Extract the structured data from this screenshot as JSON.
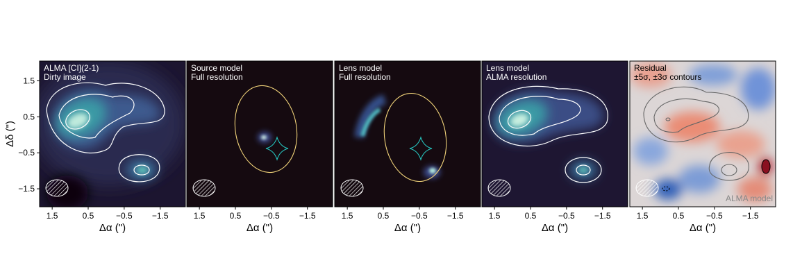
{
  "chart_data": [
    {
      "type": "image",
      "title": "ALMA [CI](2-1)",
      "subtitle": "Dirty image",
      "x_label": "Δα (\")",
      "y_label": "Δδ (\")",
      "xlim": [
        1.85,
        -2.2
      ],
      "ylim": [
        -2.0,
        2.05
      ],
      "xticks": [
        1.5,
        0.5,
        {
          "value": -0.5,
          "label": "−0.5"
        },
        {
          "value": -1.5,
          "label": "−1.5"
        }
      ],
      "yticks": [
        1.5,
        0.5,
        {
          "value": -0.5,
          "label": "−0.5"
        },
        {
          "value": -1.5,
          "label": "−1.5"
        }
      ]
    },
    {
      "type": "image",
      "title": "Source model",
      "subtitle": "Full resolution",
      "x_label": "Δα (\")",
      "xlim": [
        1.85,
        -2.2
      ],
      "ylim": [
        -2.0,
        2.05
      ],
      "xticks": [
        1.5,
        0.5,
        {
          "value": -0.5,
          "label": "−0.5"
        },
        {
          "value": -1.5,
          "label": "−1.5"
        }
      ]
    },
    {
      "type": "image",
      "title": "Lens model",
      "subtitle": "Full resolution",
      "x_label": "Δα (\")",
      "xlim": [
        1.85,
        -2.2
      ],
      "ylim": [
        -2.0,
        2.05
      ],
      "xticks": [
        1.5,
        0.5,
        {
          "value": -0.5,
          "label": "−0.5"
        },
        {
          "value": -1.5,
          "label": "−1.5"
        }
      ]
    },
    {
      "type": "image",
      "title": "Lens model",
      "subtitle": "ALMA resolution",
      "x_label": "Δα (\")",
      "xlim": [
        1.85,
        -2.2
      ],
      "ylim": [
        -2.0,
        2.05
      ],
      "xticks": [
        1.5,
        0.5,
        {
          "value": -0.5,
          "label": "−0.5"
        },
        {
          "value": -1.5,
          "label": "−1.5"
        }
      ]
    },
    {
      "type": "image",
      "title": "Residual",
      "subtitle": "±5σ, ±3σ contours",
      "x_label": "Δα (\")",
      "annotation": "ALMA model",
      "xlim": [
        1.85,
        -2.2
      ],
      "ylim": [
        -2.0,
        2.05
      ],
      "xticks": [
        1.5,
        0.5,
        {
          "value": -0.5,
          "label": "−0.5"
        },
        {
          "value": -1.5,
          "label": "−1.5"
        }
      ]
    }
  ]
}
